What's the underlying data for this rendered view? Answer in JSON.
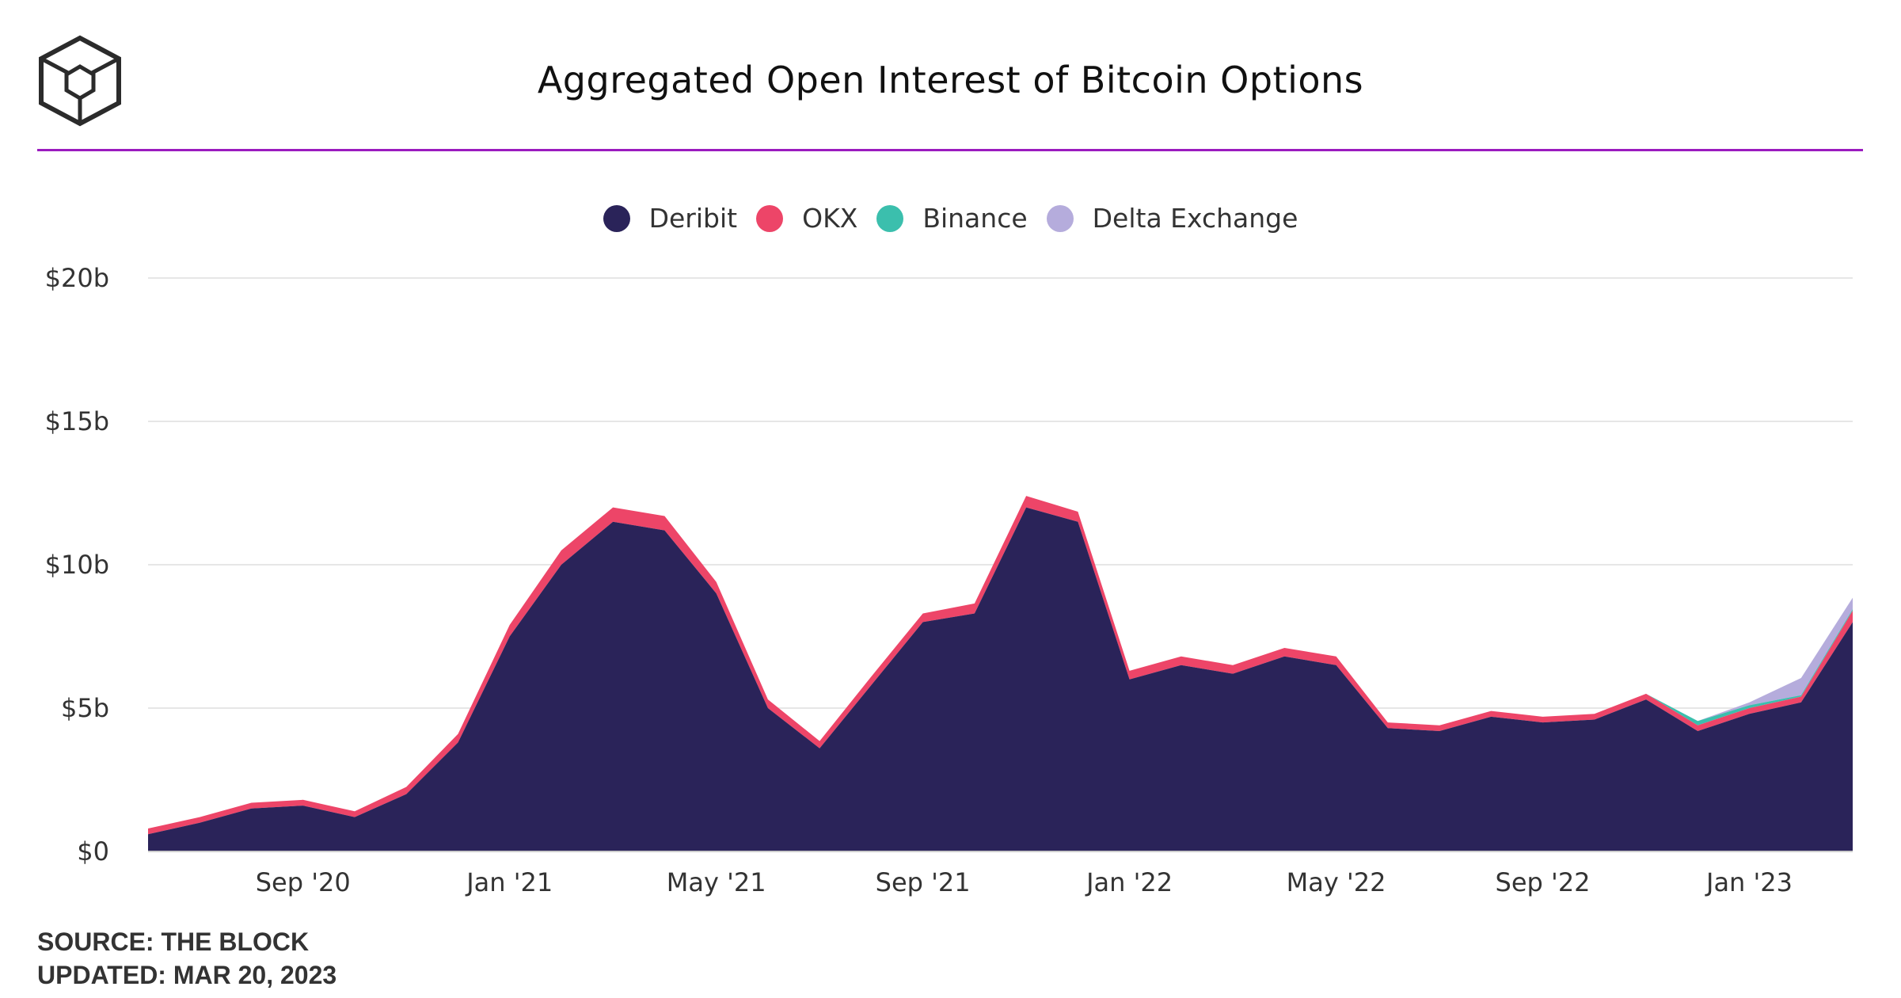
{
  "header": {
    "title": "Aggregated Open Interest of Bitcoin Options",
    "accent_color": "#9b1bbf",
    "logo_icon": "cube-logo-icon"
  },
  "footer": {
    "source": "SOURCE: THE BLOCK",
    "updated": "UPDATED: MAR 20, 2023"
  },
  "chart_data": {
    "type": "area",
    "stacked": true,
    "title": "Aggregated Open Interest of Bitcoin Options",
    "ylim": [
      0,
      20
    ],
    "y_unit": "billion USD",
    "yticks": [
      "$0",
      "$5b",
      "$10b",
      "$15b",
      "$20b"
    ],
    "xticks": [
      "Sep '20",
      "Jan '21",
      "May '21",
      "Sep '21",
      "Jan '22",
      "May '22",
      "Sep '22",
      "Jan '23"
    ],
    "grid": true,
    "legend_position": "top-center",
    "x": [
      "2020-06",
      "2020-07",
      "2020-08",
      "2020-09",
      "2020-10",
      "2020-11",
      "2020-12",
      "2021-01",
      "2021-02",
      "2021-03",
      "2021-04",
      "2021-05",
      "2021-06",
      "2021-07",
      "2021-08",
      "2021-09",
      "2021-10",
      "2021-11",
      "2021-12",
      "2022-01",
      "2022-02",
      "2022-03",
      "2022-04",
      "2022-05",
      "2022-06",
      "2022-07",
      "2022-08",
      "2022-09",
      "2022-10",
      "2022-11",
      "2022-12",
      "2023-01",
      "2023-02",
      "2023-03"
    ],
    "series": [
      {
        "name": "Deribit",
        "color": "#2a2359",
        "values": [
          0.6,
          1.0,
          1.5,
          1.6,
          1.2,
          2.0,
          3.8,
          7.5,
          10.0,
          11.5,
          11.2,
          9.0,
          5.0,
          3.6,
          5.8,
          8.0,
          8.3,
          12.0,
          11.5,
          6.0,
          6.5,
          6.2,
          6.8,
          6.5,
          4.3,
          4.2,
          4.7,
          4.5,
          4.6,
          5.3,
          4.2,
          4.8,
          5.2,
          8.0
        ]
      },
      {
        "name": "OKX",
        "color": "#ed4568",
        "values": [
          0.2,
          0.2,
          0.2,
          0.2,
          0.2,
          0.25,
          0.3,
          0.4,
          0.5,
          0.5,
          0.5,
          0.4,
          0.3,
          0.25,
          0.3,
          0.3,
          0.35,
          0.4,
          0.35,
          0.3,
          0.3,
          0.3,
          0.3,
          0.3,
          0.2,
          0.2,
          0.2,
          0.2,
          0.2,
          0.2,
          0.2,
          0.2,
          0.2,
          0.4
        ]
      },
      {
        "name": "Binance",
        "color": "#3bbfad",
        "values": [
          0,
          0,
          0,
          0,
          0,
          0,
          0,
          0,
          0,
          0,
          0,
          0,
          0,
          0,
          0,
          0,
          0,
          0,
          0,
          0,
          0,
          0,
          0,
          0,
          0,
          0,
          0,
          0,
          0,
          0,
          0.15,
          0.1,
          0.05,
          0.05
        ]
      },
      {
        "name": "Delta Exchange",
        "color": "#b5acdc",
        "values": [
          0,
          0,
          0,
          0,
          0,
          0,
          0,
          0,
          0,
          0,
          0,
          0,
          0,
          0,
          0,
          0,
          0,
          0,
          0,
          0,
          0,
          0,
          0,
          0,
          0,
          0,
          0,
          0,
          0,
          0,
          0,
          0.1,
          0.6,
          0.4
        ]
      }
    ]
  }
}
